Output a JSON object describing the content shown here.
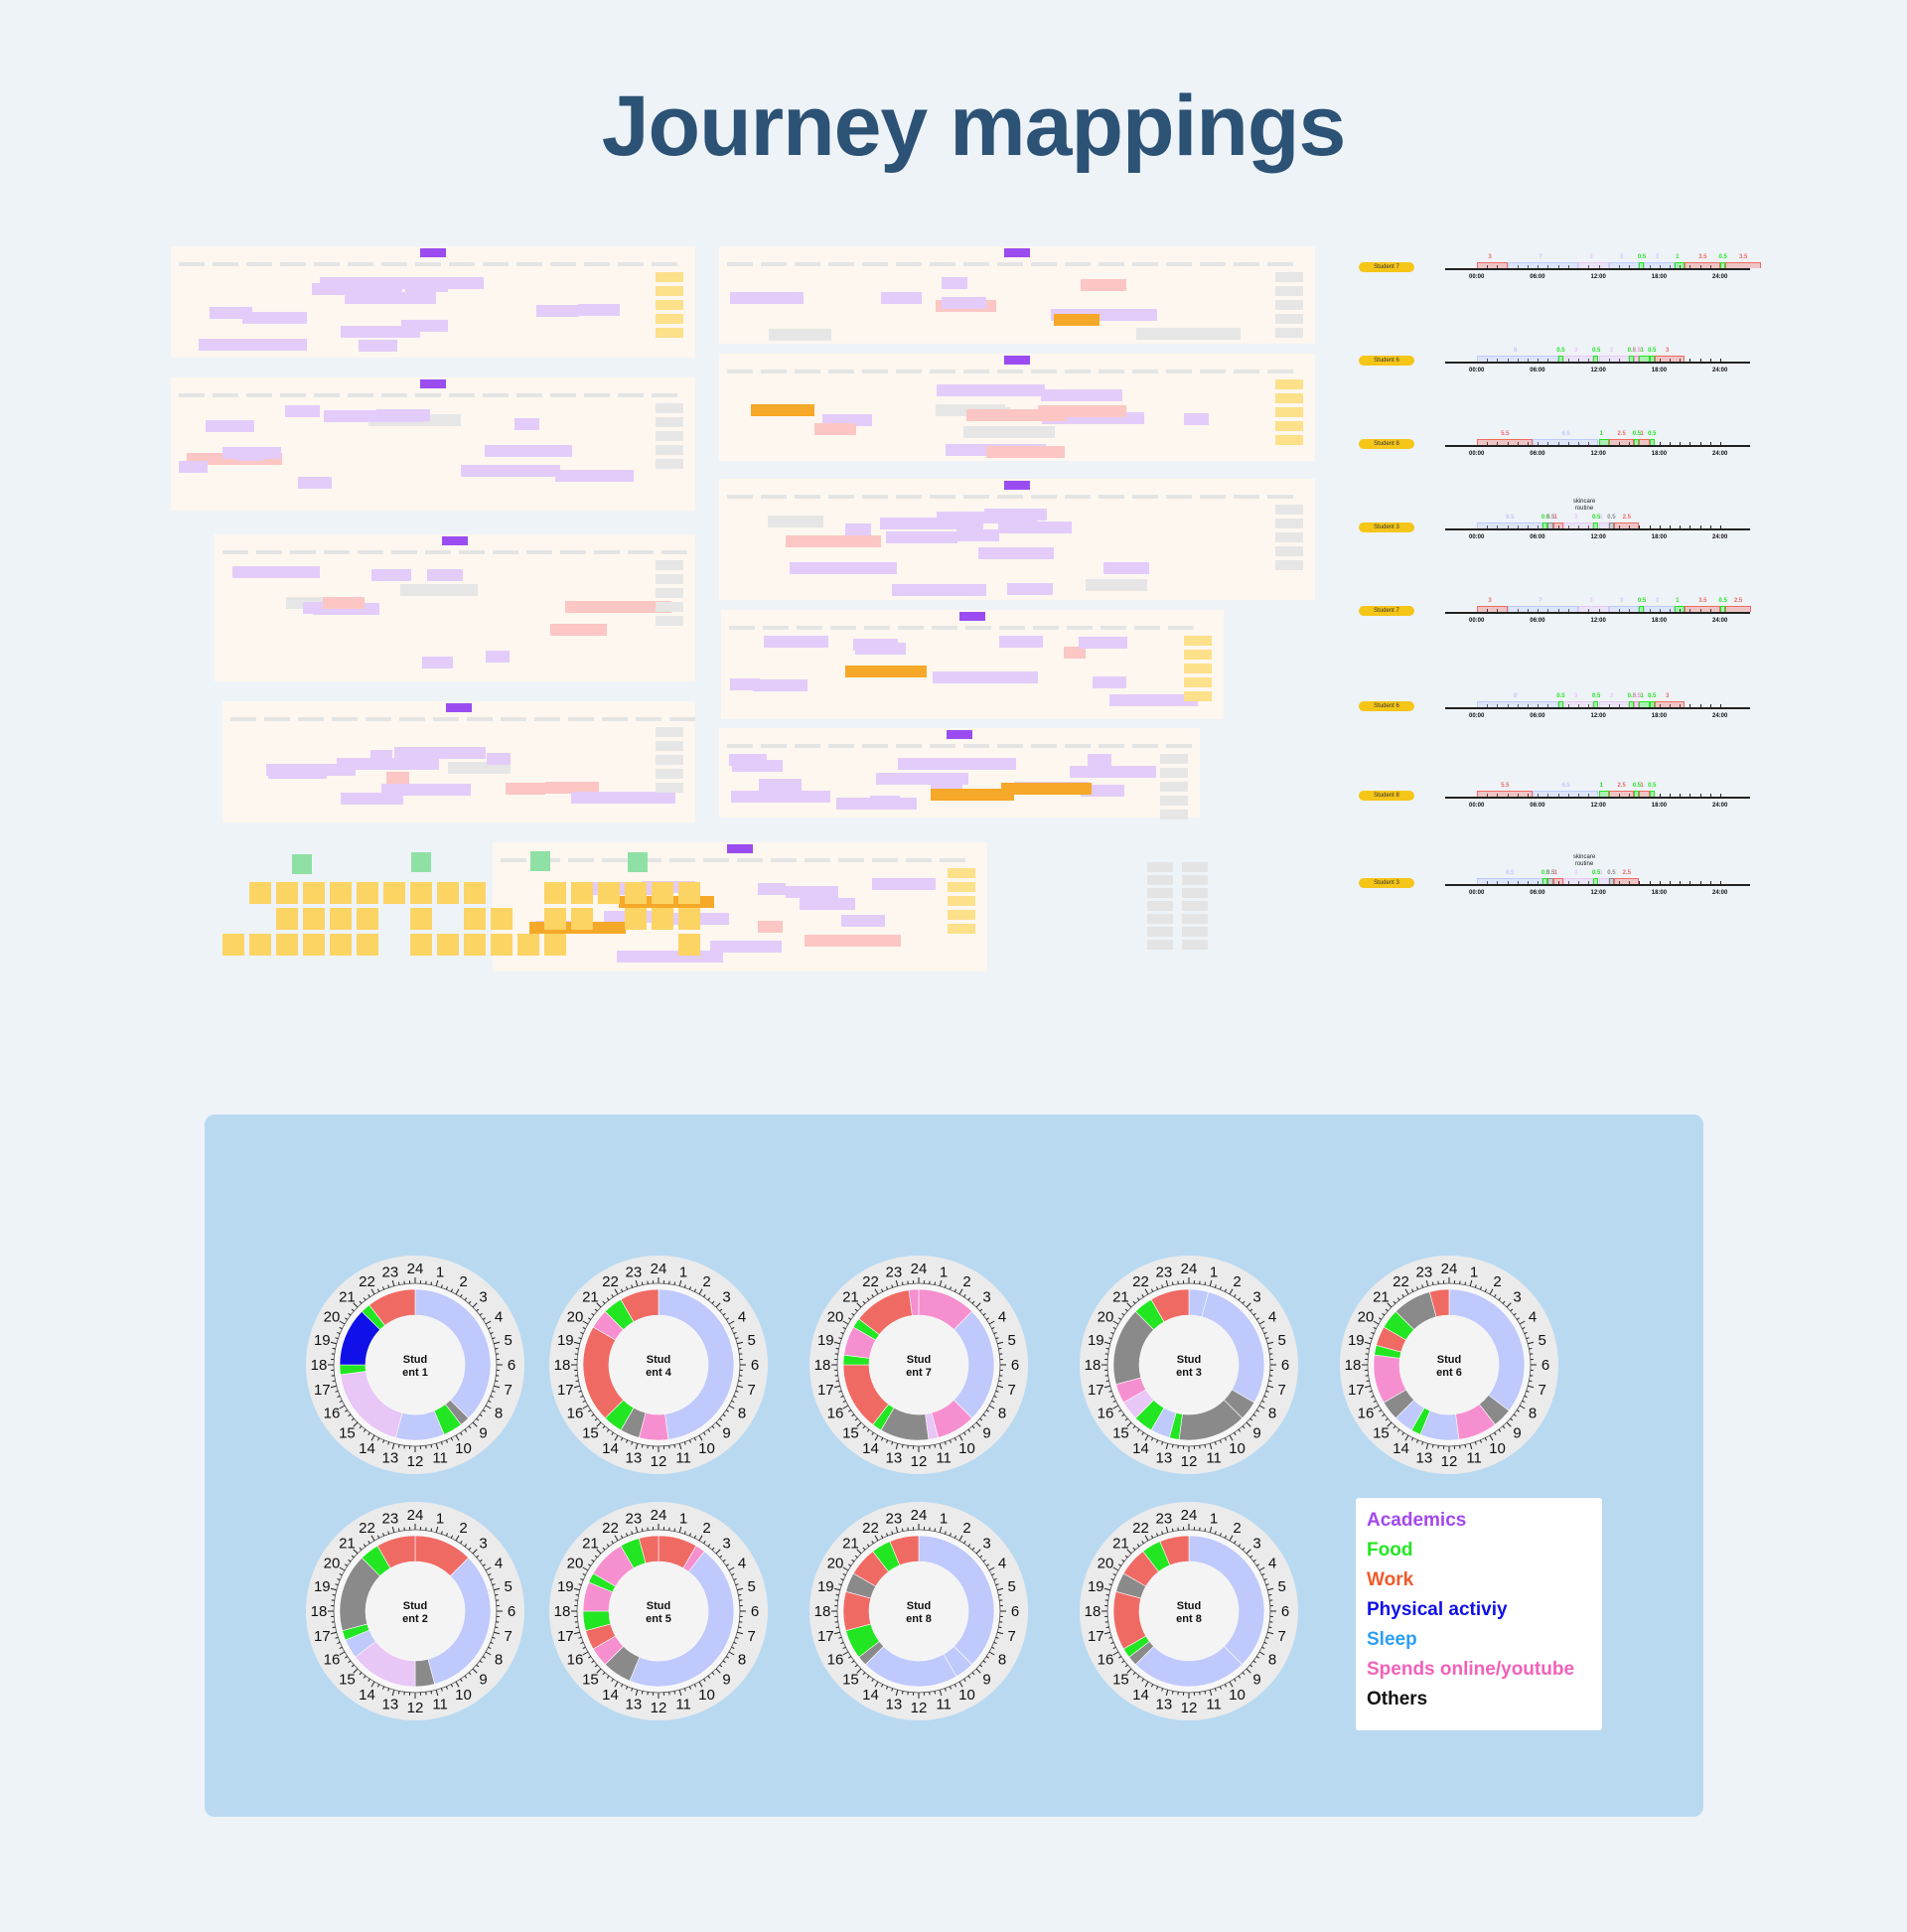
{
  "title": "Journey mappings",
  "colors": {
    "academics": "#e8c6f5",
    "food": "#22e622",
    "work": "#f06a64",
    "physical": "#1010e8",
    "sleep": "#bfc9fb",
    "online": "#f68fcf",
    "others": "#8a8a8a"
  },
  "timelines": {
    "ticks": [
      "00:00",
      "06:00",
      "12:00",
      "18:00",
      "24:00"
    ],
    "notes": [
      "skincare routine"
    ],
    "rows": [
      {
        "label": "Student 7",
        "segments": [
          {
            "label": "3",
            "c": "work"
          },
          {
            "label": "7",
            "c": "sleep"
          },
          {
            "label": "3",
            "c": "academics"
          },
          {
            "label": "3",
            "c": "sleep"
          },
          {
            "label": "0.5",
            "c": "food"
          },
          {
            "label": "3",
            "c": "sleep"
          },
          {
            "label": "1",
            "c": "food"
          },
          {
            "label": "3.5",
            "c": "work"
          },
          {
            "label": "0.5",
            "c": "food"
          },
          {
            "label": "3.5",
            "c": "work"
          }
        ]
      },
      {
        "label": "Student 6",
        "segments": [
          {
            "label": "8",
            "c": "sleep"
          },
          {
            "label": "0.5",
            "c": "food"
          },
          {
            "label": "3",
            "c": "academics"
          },
          {
            "label": "0.5",
            "c": "food"
          },
          {
            "label": "3",
            "c": "academics"
          },
          {
            "label": "0.5",
            "c": "food"
          },
          {
            "label": "0.5",
            "c": "online"
          },
          {
            "label": "1",
            "c": "food"
          },
          {
            "label": "0.5",
            "c": "food"
          },
          {
            "label": "3",
            "c": "work"
          }
        ]
      },
      {
        "label": "Student 8",
        "segments": [
          {
            "label": "5.5",
            "c": "work"
          },
          {
            "label": "6.5",
            "c": "sleep"
          },
          {
            "label": "1",
            "c": "food"
          },
          {
            "label": "2.5",
            "c": "work"
          },
          {
            "label": "0.5",
            "c": "food"
          },
          {
            "label": "1",
            "c": "work"
          },
          {
            "label": "0.5",
            "c": "food"
          }
        ]
      },
      {
        "label": "Student 3",
        "segments": [
          {
            "label": "6.5",
            "c": "sleep"
          },
          {
            "label": "0.5",
            "c": "food"
          },
          {
            "label": "0.5",
            "c": "others"
          },
          {
            "label": "1",
            "c": "work"
          },
          {
            "label": "3",
            "c": "academics"
          },
          {
            "label": "0.5",
            "c": "food"
          },
          {
            "label": "1",
            "c": "academics"
          },
          {
            "label": "0.5",
            "c": "others"
          },
          {
            "label": "2.5",
            "c": "work"
          }
        ]
      },
      {
        "label": "Student 7",
        "segments": [
          {
            "label": "3",
            "c": "work"
          },
          {
            "label": "7",
            "c": "sleep"
          },
          {
            "label": "3",
            "c": "academics"
          },
          {
            "label": "3",
            "c": "sleep"
          },
          {
            "label": "0.5",
            "c": "food"
          },
          {
            "label": "3",
            "c": "sleep"
          },
          {
            "label": "1",
            "c": "food"
          },
          {
            "label": "3.5",
            "c": "work"
          },
          {
            "label": "0.5",
            "c": "food"
          },
          {
            "label": "2.5",
            "c": "work"
          }
        ]
      },
      {
        "label": "Student 6",
        "segments": [
          {
            "label": "8",
            "c": "sleep"
          },
          {
            "label": "0.5",
            "c": "food"
          },
          {
            "label": "3",
            "c": "academics"
          },
          {
            "label": "0.5",
            "c": "food"
          },
          {
            "label": "3",
            "c": "academics"
          },
          {
            "label": "0.5",
            "c": "food"
          },
          {
            "label": "0.5",
            "c": "online"
          },
          {
            "label": "1",
            "c": "food"
          },
          {
            "label": "0.5",
            "c": "food"
          },
          {
            "label": "3",
            "c": "work"
          }
        ]
      },
      {
        "label": "Student 8",
        "segments": [
          {
            "label": "5.5",
            "c": "work"
          },
          {
            "label": "6.5",
            "c": "sleep"
          },
          {
            "label": "1",
            "c": "food"
          },
          {
            "label": "2.5",
            "c": "work"
          },
          {
            "label": "0.5",
            "c": "food"
          },
          {
            "label": "1",
            "c": "work"
          },
          {
            "label": "0.5",
            "c": "food"
          }
        ]
      },
      {
        "label": "Student 3",
        "segments": [
          {
            "label": "6.5",
            "c": "sleep"
          },
          {
            "label": "0.5",
            "c": "food"
          },
          {
            "label": "0.5",
            "c": "others"
          },
          {
            "label": "1",
            "c": "work"
          },
          {
            "label": "3",
            "c": "academics"
          },
          {
            "label": "0.5",
            "c": "food"
          },
          {
            "label": "1",
            "c": "academics"
          },
          {
            "label": "0.5",
            "c": "others"
          },
          {
            "label": "2.5",
            "c": "work"
          }
        ]
      }
    ]
  },
  "chart_data": {
    "type": "pie",
    "hour_labels": [
      "24",
      "1",
      "2",
      "3",
      "4",
      "5",
      "6",
      "7",
      "8",
      "9",
      "10",
      "11",
      "12",
      "13",
      "14",
      "15",
      "16",
      "17",
      "18",
      "19",
      "20",
      "21",
      "22",
      "23"
    ],
    "charts": [
      {
        "name": "Stud ent 1",
        "segments": [
          [
            0,
            9,
            "sleep"
          ],
          [
            9,
            9.5,
            "others"
          ],
          [
            9.5,
            10.5,
            "food"
          ],
          [
            10.5,
            13,
            "sleep"
          ],
          [
            13,
            17.5,
            "academics"
          ],
          [
            17.5,
            18,
            "food"
          ],
          [
            18,
            21,
            "physical"
          ],
          [
            21,
            21.5,
            "food"
          ],
          [
            21.5,
            24,
            "work"
          ]
        ]
      },
      {
        "name": "Stud ent 4",
        "segments": [
          [
            0,
            11.5,
            "sleep"
          ],
          [
            11.5,
            13,
            "online"
          ],
          [
            13,
            14,
            "others"
          ],
          [
            14,
            15,
            "food"
          ],
          [
            15,
            20,
            "work"
          ],
          [
            20,
            21,
            "online"
          ],
          [
            21,
            22,
            "food"
          ],
          [
            22,
            24,
            "work"
          ]
        ]
      },
      {
        "name": "Stud ent 7",
        "segments": [
          [
            0,
            3,
            "online"
          ],
          [
            3,
            9,
            "sleep"
          ],
          [
            9,
            11,
            "online"
          ],
          [
            11,
            11.5,
            "academics"
          ],
          [
            11.5,
            14,
            "others"
          ],
          [
            14,
            14.5,
            "food"
          ],
          [
            14.5,
            18,
            "work"
          ],
          [
            18,
            18.5,
            "food"
          ],
          [
            18.5,
            20,
            "online"
          ],
          [
            20,
            20.5,
            "food"
          ],
          [
            20.5,
            23.5,
            "work"
          ],
          [
            23.5,
            24,
            "online"
          ]
        ]
      },
      {
        "name": "Stud ent 3",
        "segments": [
          [
            0,
            1,
            "sleep"
          ],
          [
            1,
            8,
            "sleep"
          ],
          [
            8,
            9,
            "others"
          ],
          [
            9,
            12.5,
            "others"
          ],
          [
            12.5,
            13,
            "food"
          ],
          [
            13,
            14,
            "sleep"
          ],
          [
            14,
            15,
            "food"
          ],
          [
            15,
            16,
            "academics"
          ],
          [
            16,
            17,
            "online"
          ],
          [
            17,
            21,
            "others"
          ],
          [
            21,
            22,
            "food"
          ],
          [
            22,
            24,
            "work"
          ]
        ]
      },
      {
        "name": "Stud ent 6",
        "segments": [
          [
            0,
            8.5,
            "sleep"
          ],
          [
            8.5,
            9.5,
            "others"
          ],
          [
            9.5,
            11.5,
            "online"
          ],
          [
            11.5,
            13.5,
            "sleep"
          ],
          [
            13.5,
            14,
            "food"
          ],
          [
            14,
            15,
            "sleep"
          ],
          [
            15,
            16,
            "others"
          ],
          [
            16,
            18.5,
            "online"
          ],
          [
            18.5,
            19,
            "food"
          ],
          [
            19,
            20,
            "work"
          ],
          [
            20,
            21,
            "food"
          ],
          [
            21,
            23,
            "others"
          ],
          [
            23,
            24,
            "work"
          ]
        ]
      },
      {
        "name": "Stud ent 2",
        "segments": [
          [
            0,
            3,
            "work"
          ],
          [
            3,
            11,
            "sleep"
          ],
          [
            11,
            12,
            "others"
          ],
          [
            12,
            15.5,
            "academics"
          ],
          [
            15.5,
            16.5,
            "sleep"
          ],
          [
            16.5,
            17,
            "food"
          ],
          [
            17,
            21,
            "others"
          ],
          [
            21,
            22,
            "food"
          ],
          [
            22,
            24,
            "work"
          ]
        ]
      },
      {
        "name": "Stud ent 5",
        "segments": [
          [
            0,
            2,
            "work"
          ],
          [
            2,
            2.5,
            "online"
          ],
          [
            2.5,
            13.5,
            "sleep"
          ],
          [
            13.5,
            15,
            "others"
          ],
          [
            15,
            16,
            "online"
          ],
          [
            16,
            17,
            "work"
          ],
          [
            17,
            18,
            "food"
          ],
          [
            18,
            19.5,
            "online"
          ],
          [
            19.5,
            20,
            "food"
          ],
          [
            20,
            22,
            "online"
          ],
          [
            22,
            23,
            "food"
          ],
          [
            23,
            24,
            "work"
          ]
        ]
      },
      {
        "name": "Stud ent 8",
        "segments": [
          [
            0,
            9,
            "sleep"
          ],
          [
            9,
            10,
            "sleep"
          ],
          [
            10,
            15,
            "sleep"
          ],
          [
            15,
            15.5,
            "others"
          ],
          [
            15.5,
            17,
            "food"
          ],
          [
            17,
            19,
            "work"
          ],
          [
            19,
            20,
            "others"
          ],
          [
            20,
            21.5,
            "work"
          ],
          [
            21.5,
            22.5,
            "food"
          ],
          [
            22.5,
            24,
            "work"
          ]
        ]
      },
      {
        "name": "Stud ent 8",
        "segments": [
          [
            0,
            9,
            "sleep"
          ],
          [
            9,
            15,
            "sleep"
          ],
          [
            15,
            15.5,
            "others"
          ],
          [
            15.5,
            16,
            "food"
          ],
          [
            16,
            19,
            "work"
          ],
          [
            19,
            20,
            "others"
          ],
          [
            20,
            21.5,
            "work"
          ],
          [
            21.5,
            22.5,
            "food"
          ],
          [
            22.5,
            24,
            "work"
          ]
        ]
      }
    ]
  },
  "legend": {
    "items": [
      {
        "label": "Academics",
        "color": "#a347ee"
      },
      {
        "label": "Food",
        "color": "#22e622"
      },
      {
        "label": "Work",
        "color": "#ee5a2a"
      },
      {
        "label": "Physical activiy",
        "color": "#1010e8"
      },
      {
        "label": "Sleep",
        "color": "#2c9ff2"
      },
      {
        "label": "Spends online/youtube",
        "color": "#f261b8"
      },
      {
        "label": "Others",
        "color": "#111111"
      }
    ]
  }
}
